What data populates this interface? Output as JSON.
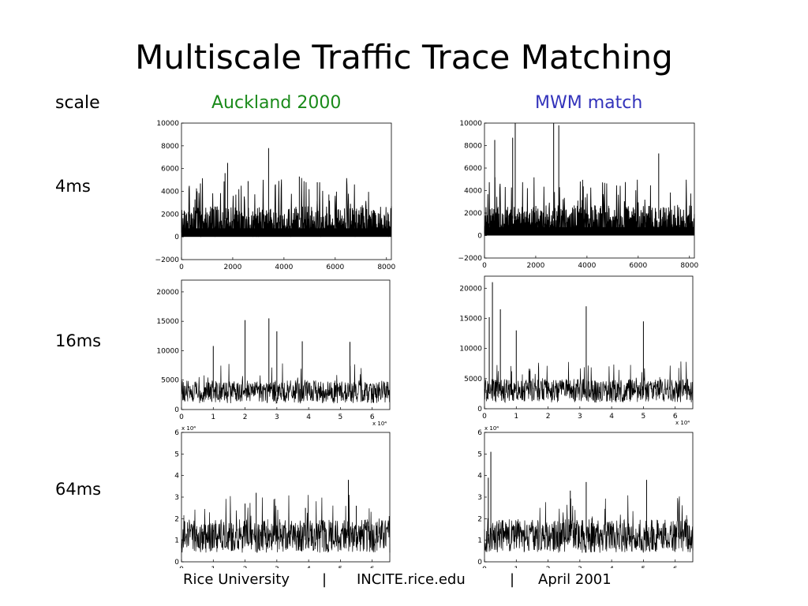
{
  "title": "Multiscale Traffic Trace Matching",
  "columns": {
    "scale_label": "scale",
    "left": {
      "label": "Auckland 2000",
      "color": "#1a8a1a"
    },
    "right": {
      "label": "MWM match",
      "color": "#3333bb"
    }
  },
  "rows": [
    "4ms",
    "16ms",
    "64ms"
  ],
  "footer": {
    "org": "Rice University",
    "sep": "|",
    "site": "INCITE.rice.edu",
    "date": "April 2001"
  },
  "chart_data": [
    {
      "type": "line",
      "title": "Auckland 2000",
      "scale": "4ms",
      "xlim": [
        0,
        8192
      ],
      "ylim": [
        -2000,
        10000
      ],
      "xticks": [
        "0",
        "2000",
        "4000",
        "6000",
        "8000"
      ],
      "yticks": [
        "−2000",
        "0",
        "2000",
        "4000",
        "6000",
        "8000",
        "10000"
      ],
      "baseline": 1500,
      "peaks": [
        [
          1800,
          6500
        ],
        [
          3400,
          7800
        ],
        [
          1700,
          5600
        ],
        [
          4600,
          5300
        ],
        [
          2600,
          4900
        ],
        [
          5300,
          4800
        ]
      ]
    },
    {
      "type": "line",
      "title": "MWM match",
      "scale": "4ms",
      "xlim": [
        0,
        8192
      ],
      "ylim": [
        -2000,
        10000
      ],
      "xticks": [
        "0",
        "2000",
        "4000",
        "6000",
        "8000"
      ],
      "yticks": [
        "−2000",
        "0",
        "2000",
        "4000",
        "6000",
        "8000",
        "10000"
      ],
      "baseline": 1500,
      "peaks": [
        [
          1200,
          10000
        ],
        [
          2700,
          10000
        ],
        [
          2900,
          9800
        ],
        [
          1100,
          8700
        ],
        [
          400,
          8500
        ],
        [
          6800,
          7300
        ]
      ]
    },
    {
      "type": "line",
      "title": "Auckland 2000",
      "scale": "16ms",
      "xlim": [
        0,
        65536
      ],
      "ylim": [
        0,
        22000
      ],
      "xticks": [
        "0",
        "1",
        "2",
        "3",
        "4",
        "5",
        "6"
      ],
      "xmultiplier": "x 10^4",
      "yticks": [
        "0",
        "5000",
        "10000",
        "15000",
        "20000"
      ],
      "baseline": 3000,
      "peaks": [
        [
          20000,
          15200
        ],
        [
          27500,
          15500
        ],
        [
          30000,
          13300
        ],
        [
          53000,
          11500
        ],
        [
          38000,
          11600
        ],
        [
          10000,
          10800
        ]
      ]
    },
    {
      "type": "line",
      "title": "MWM match",
      "scale": "16ms",
      "xlim": [
        0,
        65536
      ],
      "ylim": [
        0,
        22000
      ],
      "xticks": [
        "0",
        "1",
        "2",
        "3",
        "4",
        "5",
        "6"
      ],
      "xmultiplier": "x 10^4",
      "yticks": [
        "0",
        "5000",
        "10000",
        "15000",
        "20000"
      ],
      "baseline": 3000,
      "peaks": [
        [
          2500,
          21000
        ],
        [
          32000,
          17000
        ],
        [
          5000,
          16500
        ],
        [
          1500,
          15200
        ],
        [
          50000,
          14500
        ],
        [
          10000,
          13000
        ]
      ]
    },
    {
      "type": "line",
      "title": "Auckland 2000",
      "scale": "64ms",
      "xlim": [
        0,
        65536
      ],
      "ylim": [
        0,
        60000
      ],
      "xticks": [
        "0",
        "1",
        "2",
        "3",
        "4",
        "5",
        "6"
      ],
      "xmultiplier": "x 10^4",
      "yticks": [
        "0",
        "1",
        "2",
        "3",
        "4",
        "5",
        "6"
      ],
      "ymultiplier": "x 10^4",
      "baseline": 12000,
      "peaks": [
        [
          52500,
          38000
        ],
        [
          23500,
          32000
        ],
        [
          20000,
          27000
        ],
        [
          55000,
          26000
        ],
        [
          39000,
          25000
        ]
      ]
    },
    {
      "type": "line",
      "title": "MWM match",
      "scale": "64ms",
      "xlim": [
        0,
        65536
      ],
      "ylim": [
        0,
        60000
      ],
      "xticks": [
        "0",
        "1",
        "2",
        "3",
        "4",
        "5",
        "6"
      ],
      "xmultiplier": "x 10^4",
      "yticks": [
        "0",
        "1",
        "2",
        "3",
        "4",
        "5",
        "6"
      ],
      "ymultiplier": "x 10^4",
      "baseline": 12000,
      "peaks": [
        [
          2000,
          51000
        ],
        [
          1200,
          39000
        ],
        [
          32000,
          37000
        ],
        [
          51000,
          38000
        ],
        [
          27000,
          33000
        ]
      ]
    }
  ]
}
